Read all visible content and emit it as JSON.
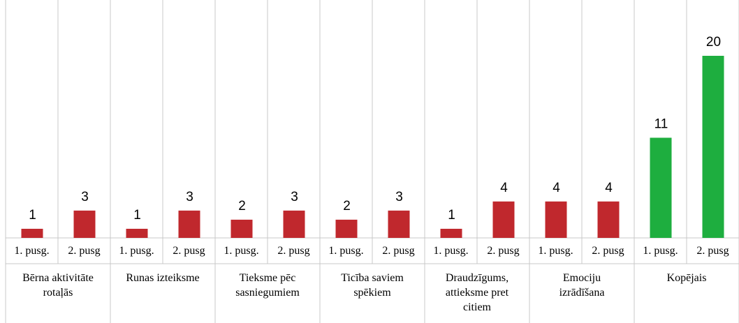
{
  "chart_data": {
    "type": "bar",
    "categories": [
      "1. pusg.",
      "2. pusg",
      "1. pusg.",
      "2. pusg",
      "1. pusg.",
      "2. pusg",
      "1. pusg.",
      "2. pusg",
      "1. pusg.",
      "2. pusg",
      "1. pusg.",
      "2. pusg",
      "1. pusg.",
      "2. pusg"
    ],
    "groups": [
      "Bērna aktivitāte rotaļās",
      "Runas izteiksme",
      "Tieksme pēc sasniegumiem",
      "Ticība saviem spēkiem",
      "Draudzīgums, attieksme pret citiem",
      "Emociju izrādīšana",
      "Kopējais"
    ],
    "values": [
      1,
      3,
      1,
      3,
      2,
      3,
      2,
      3,
      1,
      4,
      4,
      4,
      11,
      20
    ],
    "colors": [
      "#c0282d",
      "#c0282d",
      "#c0282d",
      "#c0282d",
      "#c0282d",
      "#c0282d",
      "#c0282d",
      "#c0282d",
      "#c0282d",
      "#c0282d",
      "#c0282d",
      "#c0282d",
      "#1eae3f",
      "#1eae3f"
    ]
  }
}
